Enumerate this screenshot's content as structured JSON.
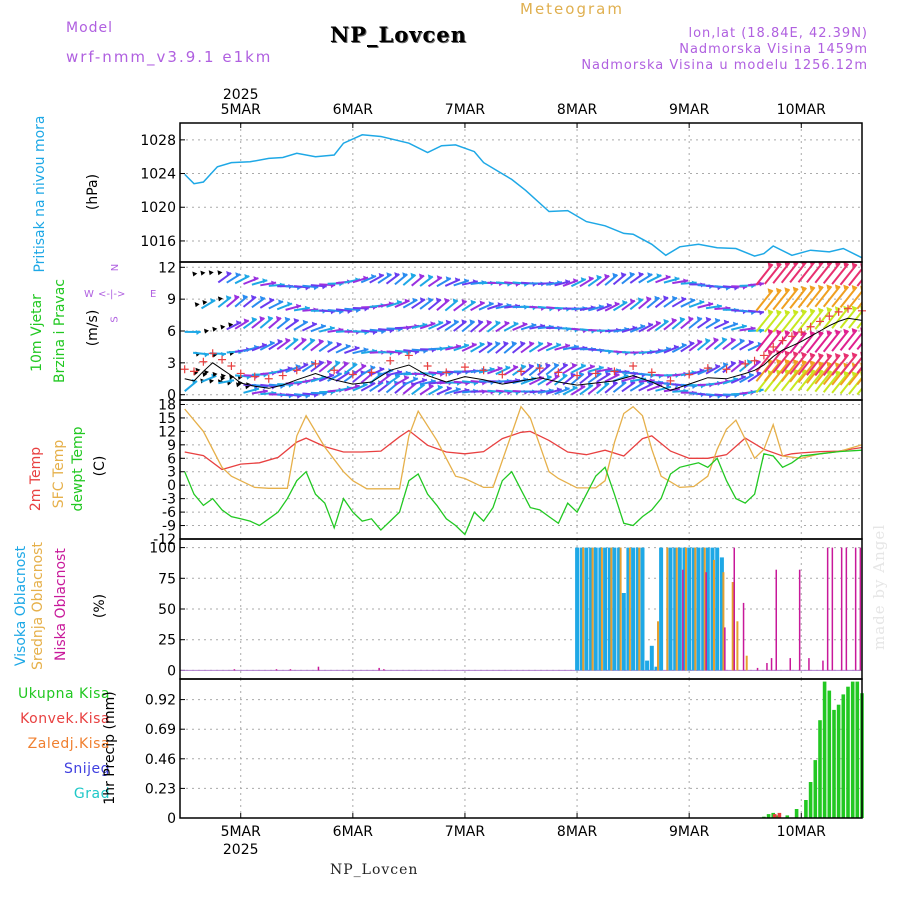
{
  "header": {
    "model_label": "Model",
    "model_name": "wrf-nmm_v3.9.1 e1km",
    "station": "NP_Lovcen",
    "meteogram": "Meteogram",
    "lonlat": "lon,lat (18.84E, 42.39N)",
    "altitude": "Nadmorska Visina 1459m",
    "model_altitude": "Nadmorska Visina u modelu 1256.12m"
  },
  "footer": {
    "station": "NP_Lovcen",
    "credit": "made by Angel"
  },
  "time_axis": {
    "year": "2025",
    "day_labels": [
      "5MAR",
      "6MAR",
      "7MAR",
      "8MAR",
      "9MAR",
      "10MAR"
    ],
    "start_hour": -13,
    "end_hour": 133
  },
  "colors": {
    "pressure": "#1ea8e6",
    "temp2m": "#e84040",
    "sfc_temp": "#e6b04a",
    "dewpoint": "#22c822",
    "visoka": "#1ea8e6",
    "srednja": "#e6a030",
    "niska": "#c8189a",
    "precip_total": "#22c822",
    "precip_conv": "#e84040",
    "precip_frozen": "#f08030",
    "snow": "#4040e0",
    "grad": "#20c8c8",
    "wind_label": "#22c822",
    "compass": "#b060e0"
  },
  "panels": {
    "pressure": {
      "ylabel": "Pritisak na nivou mora",
      "unit": "(hPa)",
      "ticks": [
        "1016",
        "1020",
        "1024",
        "1028"
      ]
    },
    "wind": {
      "ylabel_line1": "10m Vjetar",
      "ylabel_line2": "Brzina i Pravac",
      "unit": "(m/s)",
      "ticks": [
        "0",
        "3",
        "6",
        "9",
        "12"
      ],
      "compass_n": "N",
      "compass_w": "W",
      "compass_e": "E",
      "compass_s": "S",
      "compass_arrows": "<-|->"
    },
    "temperature": {
      "ylabel_2m": "2m Temp",
      "ylabel_sfc": "SFC Temp",
      "ylabel_dew": "dewpt Temp",
      "unit": "(C)",
      "ticks": [
        "-12",
        "-9",
        "-6",
        "-3",
        "0",
        "3",
        "6",
        "9",
        "12",
        "15",
        "18"
      ]
    },
    "cloud": {
      "ylabel_visoka": "Visoka Oblacnost",
      "ylabel_srednja": "Srednja Oblacnost",
      "ylabel_niska": "Niska Oblacnost",
      "unit": "(%)",
      "ticks": [
        "0",
        "25",
        "50",
        "75",
        "100"
      ]
    },
    "precip": {
      "legend": [
        "Ukupna Kisa",
        "Konvek.Kisa",
        "Zaledj.Kisa",
        "Snijeg",
        "Grad"
      ],
      "ylabel": "1hr Precip (mm)",
      "ticks": [
        "0",
        "0.23",
        "0.46",
        "0.69",
        "0.92"
      ]
    }
  },
  "chart_data": [
    {
      "type": "line",
      "title": "Pritisak na nivou mora",
      "ylabel": "(hPa)",
      "x_unit": "hours from 2025-03-05 00:00",
      "ylim": [
        1013.5,
        1030
      ],
      "series": [
        {
          "name": "Pritisak na nivou mora",
          "x": [
            -12,
            -10,
            -8,
            -5,
            -2,
            2,
            6,
            9,
            12,
            16,
            20,
            22,
            26,
            30,
            36,
            40,
            43,
            46,
            50,
            52,
            55,
            58,
            61,
            66,
            70,
            74,
            78,
            82,
            84,
            88,
            91,
            94,
            98,
            102,
            106,
            110,
            112,
            114,
            118,
            122,
            126,
            129,
            133
          ],
          "values": [
            1023.9,
            1022.8,
            1023.0,
            1024.8,
            1025.3,
            1025.4,
            1025.8,
            1025.9,
            1026.4,
            1026.0,
            1026.2,
            1027.6,
            1028.6,
            1028.4,
            1027.6,
            1026.5,
            1027.3,
            1027.4,
            1026.6,
            1025.3,
            1024.3,
            1023.3,
            1022.0,
            1019.5,
            1019.6,
            1018.3,
            1017.8,
            1016.9,
            1016.8,
            1015.6,
            1014.3,
            1015.3,
            1015.6,
            1015.2,
            1015.1,
            1014.2,
            1014.5,
            1015.4,
            1014.3,
            1014.9,
            1014.7,
            1015.1,
            1014.0
          ]
        }
      ]
    },
    {
      "type": "line",
      "title": "10m Vjetar Brzina i Pravac",
      "ylabel": "(m/s)",
      "x_unit": "hours from 2025-03-05 00:00",
      "ylim": [
        -0.5,
        12.5
      ],
      "series": [
        {
          "name": "Brzina",
          "x": [
            -12,
            -10,
            -8,
            -6,
            -4,
            -2,
            0,
            3,
            6,
            9,
            12,
            16,
            20,
            24,
            28,
            32,
            36,
            40,
            44,
            48,
            52,
            56,
            60,
            64,
            68,
            72,
            76,
            80,
            84,
            88,
            92,
            96,
            100,
            104,
            108,
            110,
            112,
            114,
            116,
            118,
            120,
            122,
            124,
            126,
            128,
            130,
            133
          ],
          "values": [
            1.5,
            1.3,
            2.2,
            3.0,
            2.4,
            1.8,
            1.1,
            0.8,
            0.6,
            0.9,
            1.4,
            2.0,
            1.4,
            1.0,
            1.2,
            2.3,
            2.8,
            1.8,
            1.2,
            1.7,
            1.4,
            1.0,
            1.3,
            1.6,
            1.2,
            0.9,
            1.1,
            1.3,
            1.8,
            1.2,
            0.4,
            1.0,
            1.6,
            1.5,
            2.0,
            2.3,
            2.8,
            3.6,
            4.2,
            4.6,
            5.0,
            5.5,
            6.0,
            6.5,
            6.9,
            7.2,
            7.0
          ]
        }
      ]
    },
    {
      "type": "line",
      "title": "2m Temp / SFC Temp / dewpt Temp",
      "ylabel": "(C)",
      "x_unit": "hours from 2025-03-05 00:00",
      "ylim": [
        -12,
        19
      ],
      "series": [
        {
          "name": "2m Temp",
          "x": [
            -12,
            -8,
            -4,
            0,
            4,
            8,
            12,
            14,
            18,
            22,
            26,
            30,
            34,
            36,
            40,
            44,
            48,
            52,
            56,
            60,
            62,
            66,
            70,
            74,
            78,
            82,
            86,
            88,
            92,
            96,
            100,
            104,
            108,
            112,
            116,
            118,
            120,
            124,
            128,
            133
          ],
          "values": [
            7.4,
            6.6,
            3.5,
            4.7,
            5.0,
            6.2,
            9.6,
            10.5,
            8.6,
            7.4,
            7.4,
            7.6,
            10.8,
            12.2,
            8.9,
            7.4,
            7.0,
            7.5,
            10.4,
            11.8,
            12.0,
            10.0,
            7.4,
            6.8,
            7.8,
            6.5,
            10.4,
            11.0,
            7.6,
            6.0,
            6.0,
            6.8,
            10.5,
            8.0,
            6.5,
            7.0,
            7.2,
            7.5,
            7.6,
            8.4
          ]
        },
        {
          "name": "SFC Temp",
          "x": [
            -12,
            -8,
            -4,
            -2,
            0,
            3,
            6,
            10,
            12,
            14,
            18,
            22,
            24,
            27,
            30,
            34,
            36,
            38,
            42,
            46,
            48,
            52,
            54,
            58,
            60,
            62,
            66,
            68,
            72,
            76,
            78,
            80,
            82,
            84,
            86,
            88,
            90,
            94,
            97,
            100,
            102,
            104,
            106,
            110,
            112,
            114,
            116,
            120,
            124,
            128,
            133
          ],
          "values": [
            17.0,
            12.0,
            4.0,
            2.0,
            1.0,
            -0.5,
            -0.7,
            -0.7,
            11.0,
            15.5,
            8.5,
            3.0,
            1.0,
            -0.8,
            -0.8,
            -0.8,
            11.0,
            16.5,
            10.0,
            2.0,
            1.5,
            -0.5,
            -0.5,
            11.5,
            17.5,
            15.0,
            3.0,
            1.5,
            -0.6,
            -0.6,
            1.0,
            9.5,
            16.0,
            17.5,
            15.5,
            8.0,
            2.0,
            -0.5,
            -0.3,
            2.0,
            8.0,
            12.5,
            14.5,
            6.0,
            8.0,
            13.5,
            6.5,
            6.0,
            7.0,
            7.5,
            9.0
          ]
        },
        {
          "name": "dewpt Temp",
          "x": [
            -12,
            -10,
            -8,
            -6,
            -4,
            -2,
            0,
            2,
            4,
            6,
            8,
            10,
            12,
            14,
            16,
            18,
            20,
            22,
            24,
            26,
            28,
            30,
            32,
            34,
            36,
            38,
            40,
            42,
            44,
            46,
            48,
            50,
            52,
            54,
            56,
            58,
            60,
            62,
            64,
            66,
            68,
            70,
            72,
            74,
            76,
            78,
            80,
            82,
            84,
            86,
            88,
            90,
            92,
            94,
            96,
            98,
            100,
            102,
            104,
            106,
            108,
            110,
            112,
            114,
            116,
            118,
            120,
            124,
            128,
            133
          ],
          "values": [
            3.0,
            -2.0,
            -4.5,
            -3.0,
            -5.5,
            -7.0,
            -7.5,
            -8.0,
            -9.0,
            -7.5,
            -6.0,
            -3.0,
            1.0,
            3.0,
            -2.0,
            -4.0,
            -9.5,
            -3.0,
            -6.0,
            -8.0,
            -7.5,
            -10.0,
            -8.0,
            -6.0,
            1.0,
            2.5,
            -2.0,
            -4.5,
            -7.5,
            -9.0,
            -11.0,
            -6.0,
            -8.0,
            -5.0,
            1.0,
            3.0,
            -1.0,
            -5.0,
            -5.5,
            -7.0,
            -8.5,
            -4.0,
            -6.0,
            -2.0,
            2.0,
            4.0,
            -2.0,
            -8.5,
            -9.0,
            -7.0,
            -5.5,
            -3.0,
            2.5,
            4.0,
            4.5,
            5.0,
            4.0,
            6.0,
            1.0,
            -3.0,
            -4.0,
            -2.0,
            7.0,
            6.5,
            4.0,
            5.0,
            6.5,
            7.0,
            7.5,
            7.8
          ]
        }
      ]
    },
    {
      "type": "bar",
      "title": "Visoka / Srednja / Niska Oblacnost",
      "ylabel": "(%)",
      "x_unit": "hours from 2025-03-05 00:00",
      "ylim": [
        -7,
        107
      ],
      "series": [
        {
          "name": "Visoka Oblacnost",
          "x": [
            72,
            73,
            74,
            75,
            76,
            77,
            78,
            79,
            80,
            81,
            82,
            83,
            84,
            85,
            86,
            87,
            88,
            89,
            90,
            92,
            93,
            94,
            95,
            96,
            97,
            98,
            99,
            100,
            101,
            102,
            103
          ],
          "values": [
            100,
            100,
            100,
            100,
            100,
            100,
            100,
            100,
            100,
            100,
            63,
            100,
            100,
            100,
            100,
            8,
            20,
            3,
            100,
            100,
            100,
            100,
            100,
            100,
            100,
            100,
            100,
            100,
            100,
            100,
            92
          ]
        },
        {
          "name": "Srednja Oblacnost",
          "x": [
            73,
            75,
            77,
            79,
            81,
            83,
            85,
            89,
            91,
            93,
            95,
            97,
            99,
            101,
            103,
            105,
            106,
            108
          ],
          "values": [
            100,
            100,
            100,
            100,
            100,
            100,
            100,
            40,
            100,
            100,
            100,
            100,
            100,
            90,
            80,
            72,
            40,
            12
          ]
        },
        {
          "name": "Niska Oblacnost",
          "x": [
            -2,
            7,
            10,
            16,
            29,
            30,
            94,
            99,
            103,
            105,
            107,
            110,
            112,
            113,
            114,
            117,
            119,
            121,
            124,
            125,
            126,
            128,
            129,
            131,
            132
          ],
          "values": [
            1,
            1,
            1,
            3,
            2,
            1,
            82,
            80,
            35,
            100,
            55,
            2,
            6,
            10,
            82,
            10,
            82,
            10,
            8,
            100,
            100,
            100,
            100,
            100,
            100
          ]
        }
      ]
    },
    {
      "type": "bar",
      "title": "1hr Precip",
      "ylabel": "1hr Precip (mm)",
      "x_unit": "hours from 2025-03-05 00:00",
      "ylim": [
        0,
        1.08
      ],
      "series": [
        {
          "name": "Ukupna Kisa",
          "x": [
            112,
            113,
            114,
            115,
            117,
            119,
            121,
            122,
            123,
            124,
            125,
            126,
            127,
            128,
            129,
            130,
            131,
            132,
            133
          ],
          "values": [
            0.01,
            0.03,
            0.04,
            0.02,
            0.02,
            0.07,
            0.14,
            0.28,
            0.45,
            0.76,
            1.06,
            0.99,
            0.84,
            0.88,
            0.96,
            1.02,
            1.06,
            1.06,
            0.97
          ]
        },
        {
          "name": "Konvek.Kisa",
          "x": [
            114,
            115
          ],
          "values": [
            0.03,
            0.04
          ]
        },
        {
          "name": "Zaledj.Kisa",
          "x": [],
          "values": []
        },
        {
          "name": "Snijeg",
          "x": [],
          "values": []
        },
        {
          "name": "Grad",
          "x": [],
          "values": []
        }
      ]
    }
  ]
}
